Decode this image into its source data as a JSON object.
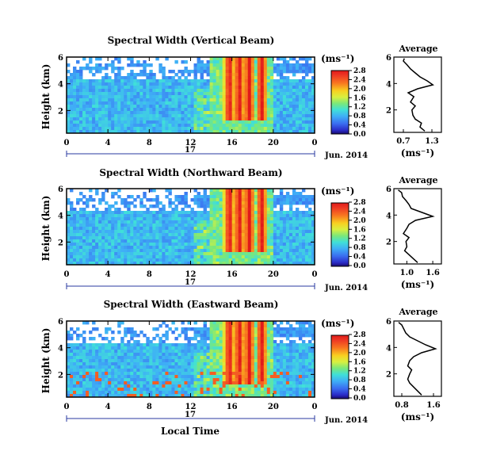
{
  "x_axis_label": "Local Time",
  "date_label": "Jun. 2014",
  "day_label": "17",
  "chart_data": [
    {
      "type": "heatmap",
      "title": "Spectral Width (Vertical Beam)",
      "ylabel": "Height (km)",
      "xlabel": "",
      "x_ticks": [
        "0",
        "4",
        "8",
        "12",
        "16",
        "20",
        "0"
      ],
      "y_ticks": [
        "2",
        "4",
        "6"
      ],
      "xlim": [
        0,
        24
      ],
      "ylim": [
        0.3,
        6
      ],
      "colorbar": {
        "label": "(ms⁻¹)",
        "ticks": [
          "0.0",
          "0.4",
          "0.8",
          "1.2",
          "1.6",
          "2.0",
          "2.4",
          "2.8"
        ],
        "range": [
          0,
          2.8
        ]
      },
      "profile": {
        "title": "Average",
        "x_ticks": [
          "0.7",
          "1.3"
        ],
        "xlim": [
          0.5,
          1.5
        ],
        "xlabel": "(ms⁻¹)",
        "y_ticks": [
          "2",
          "4",
          "6"
        ],
        "heights": [
          0.4,
          0.7,
          1.0,
          1.3,
          1.6,
          2.0,
          2.3,
          2.6,
          3.0,
          3.3,
          3.6,
          3.9,
          4.2,
          4.5,
          4.8,
          5.1,
          5.4,
          5.7,
          5.9
        ],
        "values": [
          1.15,
          1.05,
          1.08,
          0.95,
          0.9,
          0.88,
          0.95,
          0.85,
          0.92,
          0.8,
          1.0,
          1.32,
          1.2,
          1.05,
          0.95,
          0.85,
          0.78,
          0.7,
          0.72
        ]
      }
    },
    {
      "type": "heatmap",
      "title": "Spectral Width (Northward Beam)",
      "ylabel": "Height (km)",
      "xlabel": "",
      "x_ticks": [
        "0",
        "4",
        "8",
        "12",
        "16",
        "20",
        "0"
      ],
      "y_ticks": [
        "2",
        "4",
        "6"
      ],
      "xlim": [
        0,
        24
      ],
      "ylim": [
        0.3,
        6
      ],
      "colorbar": {
        "label": "(ms⁻¹)",
        "ticks": [
          "0.0",
          "0.4",
          "0.8",
          "1.2",
          "1.6",
          "2.0",
          "2.4",
          "2.8"
        ],
        "range": [
          0,
          2.8
        ]
      },
      "profile": {
        "title": "Average",
        "x_ticks": [
          "1.0",
          "1.6"
        ],
        "xlim": [
          0.7,
          1.8
        ],
        "xlabel": "(ms⁻¹)",
        "y_ticks": [
          "2",
          "4",
          "6"
        ],
        "heights": [
          0.4,
          0.7,
          1.0,
          1.3,
          1.6,
          2.0,
          2.3,
          2.6,
          3.0,
          3.3,
          3.6,
          3.9,
          4.2,
          4.5,
          4.8,
          5.1,
          5.4,
          5.7,
          5.9
        ],
        "values": [
          1.25,
          1.15,
          1.05,
          0.95,
          1.0,
          0.98,
          1.05,
          0.92,
          1.0,
          1.05,
          1.2,
          1.6,
          1.35,
          1.1,
          1.05,
          0.98,
          0.9,
          0.88,
          0.8
        ]
      }
    },
    {
      "type": "heatmap",
      "title": "Spectral Width (Eastward Beam)",
      "ylabel": "Height (km)",
      "xlabel": "Local Time",
      "x_ticks": [
        "0",
        "4",
        "8",
        "12",
        "16",
        "20",
        "0"
      ],
      "y_ticks": [
        "2",
        "4",
        "6"
      ],
      "xlim": [
        0,
        24
      ],
      "ylim": [
        0.3,
        6
      ],
      "colorbar": {
        "label": "(ms⁻¹)",
        "ticks": [
          "0.0",
          "0.4",
          "0.8",
          "1.2",
          "1.6",
          "2.0",
          "2.4",
          "2.8"
        ],
        "range": [
          0,
          2.8
        ]
      },
      "profile": {
        "title": "Average",
        "x_ticks": [
          "0.8",
          "1.6"
        ],
        "xlim": [
          0.6,
          1.8
        ],
        "xlabel": "(ms⁻¹)",
        "y_ticks": [
          "2",
          "4",
          "6"
        ],
        "heights": [
          0.4,
          0.7,
          1.0,
          1.3,
          1.6,
          2.0,
          2.3,
          2.6,
          3.0,
          3.3,
          3.6,
          3.9,
          4.2,
          4.5,
          4.8,
          5.1,
          5.4,
          5.7,
          5.9
        ],
        "values": [
          1.3,
          1.2,
          1.1,
          1.0,
          0.95,
          1.0,
          1.05,
          0.95,
          1.0,
          1.1,
          1.3,
          1.65,
          1.4,
          1.2,
          1.0,
          0.9,
          0.85,
          0.8,
          0.72
        ]
      }
    }
  ]
}
